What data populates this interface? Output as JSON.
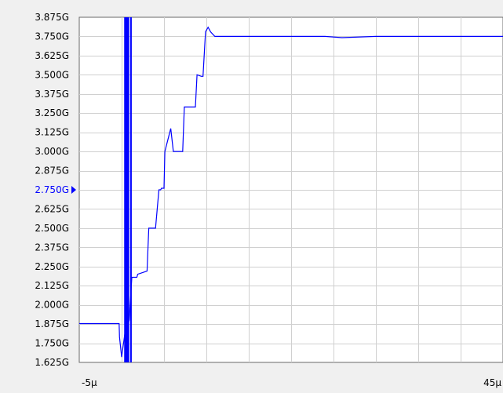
{
  "chart_data": {
    "type": "line",
    "title": "",
    "xlabel": "",
    "ylabel": "",
    "xlim": [
      -5,
      45
    ],
    "ylim": [
      1.625,
      3.875
    ],
    "x_unit": "µs",
    "y_unit": "GHz",
    "grid": true,
    "legend": "none",
    "y_tick_labels": [
      "3.875G",
      "3.750G",
      "3.625G",
      "3.500G",
      "3.375G",
      "3.250G",
      "3.125G",
      "3.000G",
      "2.875G",
      "2.750G",
      "2.625G",
      "2.500G",
      "2.375G",
      "2.250G",
      "2.125G",
      "2.000G",
      "1.875G",
      "1.750G",
      "1.625G"
    ],
    "highlighted_tick": "2.750G",
    "x_tick_labels": [
      "-5µ",
      "45µ"
    ],
    "series": [
      {
        "color": "#0000ff",
        "x": [
          -5,
          -0.3,
          -0.25,
          0.0,
          0.4,
          0.9,
          1.2,
          1.8,
          1.9,
          3.0,
          3.2,
          3.6,
          4.0,
          4.4,
          4.6,
          4.7,
          5.0,
          5.1,
          5.8,
          6.1,
          6.3,
          7.2,
          7.4,
          8.7,
          8.9,
          9.4,
          9.6,
          9.9,
          10.2,
          10.5,
          11.0,
          16,
          20,
          24,
          26,
          30,
          35,
          40,
          45
        ],
        "y": [
          1.878,
          1.878,
          1.79,
          1.66,
          1.82,
          1.9,
          2.18,
          2.18,
          2.2,
          2.22,
          2.5,
          2.5,
          2.5,
          2.75,
          2.75,
          2.76,
          2.76,
          3.0,
          3.15,
          3.0,
          3.0,
          3.0,
          3.29,
          3.29,
          3.5,
          3.49,
          3.49,
          3.78,
          3.81,
          3.78,
          3.75,
          3.75,
          3.75,
          3.75,
          3.742,
          3.75,
          3.75,
          3.75,
          3.75
        ]
      }
    ],
    "marker_band": {
      "color": "#0000ff",
      "x_start": 0.3,
      "x_end": 0.9
    }
  }
}
